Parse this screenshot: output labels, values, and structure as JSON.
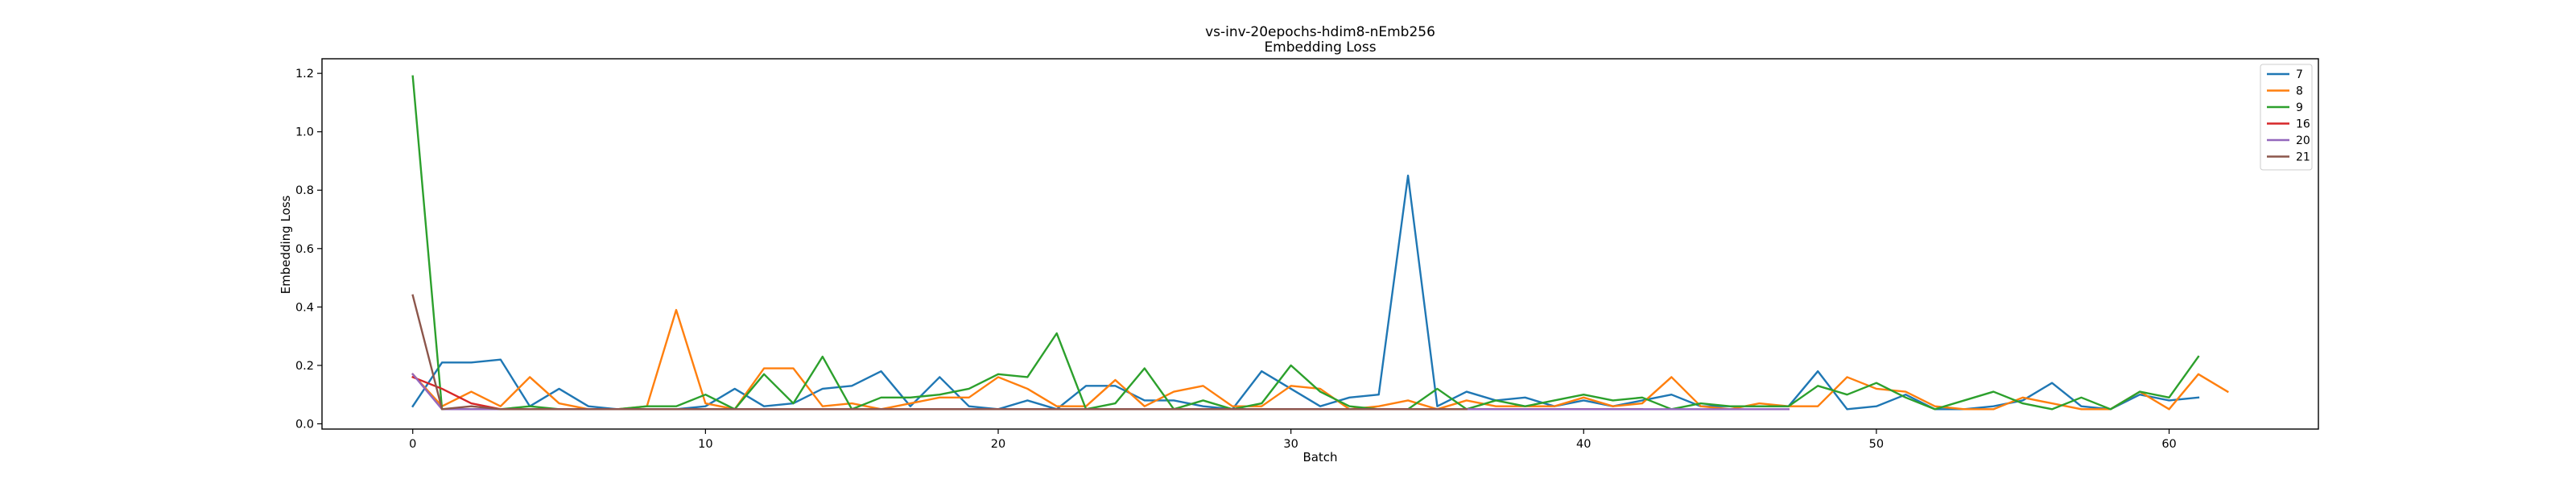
{
  "chart_data": {
    "type": "line",
    "title": "vs-inv-20epochs-hdim8-nEmb256",
    "subtitle": "Embedding Loss",
    "xlabel": "Batch",
    "ylabel": "Embedding Loss",
    "xlim": [
      -3.1,
      65.1
    ],
    "ylim": [
      -0.018,
      1.25
    ],
    "xticks": [
      0,
      10,
      20,
      30,
      40,
      50,
      60
    ],
    "yticks": [
      0.0,
      0.2,
      0.4,
      0.6,
      0.8,
      1.0,
      1.2
    ],
    "ytick_labels": [
      "0.0",
      "0.2",
      "0.4",
      "0.6",
      "0.8",
      "1.0",
      "1.2"
    ],
    "grid": false,
    "legend_position": "top-right",
    "series": [
      {
        "name": "7",
        "color": "#1f77b4",
        "x": [
          0,
          1,
          2,
          3,
          4,
          5,
          6,
          7,
          8,
          9,
          10,
          11,
          12,
          13,
          14,
          15,
          16,
          17,
          18,
          19,
          20,
          21,
          22,
          23,
          24,
          25,
          26,
          27,
          28,
          29,
          30,
          31,
          32,
          33,
          34,
          35,
          36,
          37,
          38,
          39,
          40,
          41,
          42,
          43,
          44,
          45,
          46,
          47,
          48,
          49,
          50,
          51,
          52,
          53,
          54,
          55,
          56,
          57,
          58,
          59,
          60,
          61
        ],
        "values": [
          0.06,
          0.21,
          0.21,
          0.22,
          0.06,
          0.12,
          0.06,
          0.05,
          0.05,
          0.05,
          0.06,
          0.12,
          0.06,
          0.07,
          0.12,
          0.13,
          0.18,
          0.06,
          0.16,
          0.06,
          0.05,
          0.08,
          0.05,
          0.13,
          0.13,
          0.08,
          0.08,
          0.06,
          0.05,
          0.18,
          0.12,
          0.06,
          0.09,
          0.1,
          0.85,
          0.06,
          0.11,
          0.08,
          0.09,
          0.06,
          0.08,
          0.06,
          0.08,
          0.1,
          0.06,
          0.06,
          0.06,
          0.06,
          0.18,
          0.05,
          0.06,
          0.1,
          0.05,
          0.05,
          0.06,
          0.08,
          0.14,
          0.06,
          0.05,
          0.1,
          0.08,
          0.09
        ]
      },
      {
        "name": "8",
        "color": "#ff7f0e",
        "x": [
          0,
          1,
          2,
          3,
          4,
          5,
          6,
          7,
          8,
          9,
          10,
          11,
          12,
          13,
          14,
          15,
          16,
          17,
          18,
          19,
          20,
          21,
          22,
          23,
          24,
          25,
          26,
          27,
          28,
          29,
          30,
          31,
          32,
          33,
          34,
          35,
          36,
          37,
          38,
          39,
          40,
          41,
          42,
          43,
          44,
          45,
          46,
          47,
          48,
          49,
          50,
          51,
          52,
          53,
          54,
          55,
          56,
          57,
          58,
          59,
          60,
          61,
          62
        ],
        "values": [
          0.17,
          0.06,
          0.11,
          0.06,
          0.16,
          0.07,
          0.05,
          0.05,
          0.06,
          0.39,
          0.07,
          0.05,
          0.19,
          0.19,
          0.06,
          0.07,
          0.05,
          0.07,
          0.09,
          0.09,
          0.16,
          0.12,
          0.06,
          0.06,
          0.15,
          0.06,
          0.11,
          0.13,
          0.06,
          0.06,
          0.13,
          0.12,
          0.05,
          0.06,
          0.08,
          0.05,
          0.08,
          0.06,
          0.06,
          0.06,
          0.09,
          0.06,
          0.07,
          0.16,
          0.06,
          0.05,
          0.07,
          0.06,
          0.06,
          0.16,
          0.12,
          0.11,
          0.06,
          0.05,
          0.05,
          0.09,
          0.07,
          0.05,
          0.05,
          0.11,
          0.05,
          0.17,
          0.11
        ]
      },
      {
        "name": "9",
        "color": "#2ca02c",
        "x": [
          0,
          1,
          2,
          3,
          4,
          5,
          6,
          7,
          8,
          9,
          10,
          11,
          12,
          13,
          14,
          15,
          16,
          17,
          18,
          19,
          20,
          21,
          22,
          23,
          24,
          25,
          26,
          27,
          28,
          29,
          30,
          31,
          32,
          33,
          34,
          35,
          36,
          37,
          38,
          39,
          40,
          41,
          42,
          43,
          44,
          45,
          46,
          47,
          48,
          49,
          50,
          51,
          52,
          53,
          54,
          55,
          56,
          57,
          58,
          59,
          60,
          61
        ],
        "values": [
          1.19,
          0.05,
          0.05,
          0.05,
          0.06,
          0.05,
          0.05,
          0.05,
          0.06,
          0.06,
          0.1,
          0.05,
          0.17,
          0.07,
          0.23,
          0.05,
          0.09,
          0.09,
          0.1,
          0.12,
          0.17,
          0.16,
          0.31,
          0.05,
          0.07,
          0.19,
          0.05,
          0.08,
          0.05,
          0.07,
          0.2,
          0.11,
          0.06,
          0.05,
          0.05,
          0.12,
          0.05,
          0.08,
          0.06,
          0.08,
          0.1,
          0.08,
          0.09,
          0.05,
          0.07,
          0.06,
          0.06,
          0.06,
          0.13,
          0.1,
          0.14,
          0.09,
          0.05,
          0.08,
          0.11,
          0.07,
          0.05,
          0.09,
          0.05,
          0.11,
          0.09,
          0.23
        ]
      },
      {
        "name": "16",
        "color": "#d62728",
        "x": [
          0,
          1,
          2,
          3,
          4,
          5,
          6,
          7,
          8,
          9,
          10,
          11,
          12,
          13,
          14,
          15,
          16,
          17,
          18,
          19,
          20,
          21,
          22,
          23,
          24,
          25,
          26,
          27,
          28,
          29,
          30,
          31,
          32,
          33,
          34,
          35,
          36,
          37,
          38,
          39,
          40,
          41,
          42
        ],
        "values": [
          0.16,
          0.12,
          0.07,
          0.05,
          0.05,
          0.05,
          0.05,
          0.05,
          0.05,
          0.05,
          0.05,
          0.05,
          0.05,
          0.05,
          0.05,
          0.05,
          0.05,
          0.05,
          0.05,
          0.05,
          0.05,
          0.05,
          0.05,
          0.05,
          0.05,
          0.05,
          0.05,
          0.05,
          0.05,
          0.05,
          0.05,
          0.05,
          0.05,
          0.05,
          0.05,
          0.05,
          0.05,
          0.05,
          0.05,
          0.05,
          0.05,
          0.05,
          0.05
        ]
      },
      {
        "name": "20",
        "color": "#9467bd",
        "x": [
          0,
          1,
          2,
          3,
          4,
          5,
          6,
          7,
          8,
          9,
          10,
          11,
          12,
          13,
          14,
          15,
          16,
          17,
          18,
          19,
          20,
          21,
          22,
          23,
          24,
          25,
          26,
          27,
          28,
          29,
          30,
          31,
          32,
          33,
          34,
          35,
          36,
          37,
          38,
          39,
          40,
          41,
          42,
          43,
          44,
          45,
          46,
          47
        ],
        "values": [
          0.17,
          0.05,
          0.05,
          0.05,
          0.05,
          0.05,
          0.05,
          0.05,
          0.05,
          0.05,
          0.05,
          0.05,
          0.05,
          0.05,
          0.05,
          0.05,
          0.05,
          0.05,
          0.05,
          0.05,
          0.05,
          0.05,
          0.05,
          0.05,
          0.05,
          0.05,
          0.05,
          0.05,
          0.05,
          0.05,
          0.05,
          0.05,
          0.05,
          0.05,
          0.05,
          0.05,
          0.05,
          0.05,
          0.05,
          0.05,
          0.05,
          0.05,
          0.05,
          0.05,
          0.05,
          0.05,
          0.05,
          0.05
        ]
      },
      {
        "name": "21",
        "color": "#8c564b",
        "x": [
          0,
          1,
          2,
          3,
          4,
          5,
          6,
          7,
          8,
          9,
          10,
          11,
          12,
          13,
          14,
          15,
          16,
          17,
          18,
          19,
          20,
          21,
          22,
          23,
          24,
          25,
          26,
          27,
          28,
          29,
          30,
          31,
          32,
          33,
          34,
          35,
          36
        ],
        "values": [
          0.44,
          0.05,
          0.06,
          0.05,
          0.05,
          0.05,
          0.05,
          0.05,
          0.05,
          0.05,
          0.05,
          0.05,
          0.05,
          0.05,
          0.05,
          0.05,
          0.05,
          0.05,
          0.05,
          0.05,
          0.05,
          0.05,
          0.05,
          0.05,
          0.05,
          0.05,
          0.05,
          0.05,
          0.05,
          0.05,
          0.05,
          0.05,
          0.05,
          0.05,
          0.05,
          0.05,
          0.05
        ]
      }
    ]
  }
}
